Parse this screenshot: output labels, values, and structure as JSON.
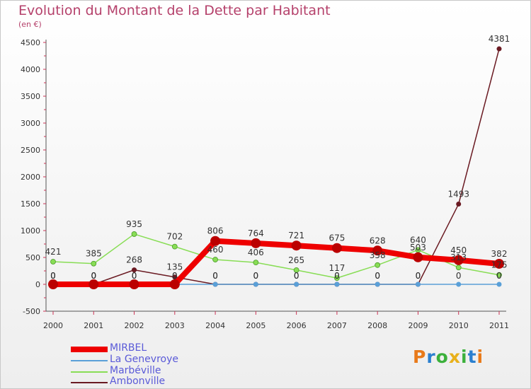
{
  "chart_data": {
    "type": "line",
    "title": "Evolution du Montant de la Dette par Habitant",
    "subtitle": "(en €)",
    "xlabel": "",
    "ylabel": "",
    "categories": [
      "2000",
      "2001",
      "2002",
      "2003",
      "2004",
      "2005",
      "2006",
      "2007",
      "2008",
      "2009",
      "2010",
      "2011"
    ],
    "ylim": [
      -500,
      4500
    ],
    "yticks": [
      -500,
      0,
      500,
      1000,
      1500,
      2000,
      2500,
      3000,
      3500,
      4000,
      4500
    ],
    "grid": false,
    "legend_position": "bottom-left",
    "series": [
      {
        "name": "MIRBEL",
        "color": "#ee0000",
        "values": [
          0,
          0,
          0,
          0,
          806,
          764,
          721,
          675,
          628,
          503,
          450,
          382
        ],
        "labels": [
          "0",
          "0",
          "0",
          "0",
          "806",
          "764",
          "721",
          "675",
          "628",
          "503",
          "450",
          "382"
        ]
      },
      {
        "name": "La Genevroye",
        "color": "#5aa0d8",
        "values": [
          0,
          0,
          0,
          0,
          0,
          0,
          0,
          0,
          0,
          0,
          0,
          0
        ],
        "labels": [
          "0",
          "0",
          "0",
          "0",
          "0",
          "0",
          "0",
          "0",
          "0",
          "0",
          "0",
          "0"
        ]
      },
      {
        "name": "Marbéville",
        "color": "#88dd55",
        "values": [
          421,
          385,
          935,
          702,
          460,
          406,
          265,
          117,
          358,
          640,
          313,
          175
        ],
        "labels": [
          "421",
          "385",
          "935",
          "702",
          "460",
          "406",
          "265",
          "117",
          "358",
          "640",
          "313",
          "175"
        ]
      },
      {
        "name": "Ambonville",
        "color": "#6a1a22",
        "values": [
          0,
          0,
          268,
          135,
          0,
          0,
          0,
          0,
          0,
          0,
          1493,
          4381
        ],
        "labels": [
          "0",
          "0",
          "268",
          "135",
          "0",
          "0",
          "0",
          "0",
          "0",
          "0",
          "1493",
          "4381"
        ]
      }
    ]
  },
  "logo": {
    "letters": [
      "P",
      "r",
      "o",
      "x",
      "i",
      "t",
      "i"
    ],
    "colors": [
      "#e87a1a",
      "#2a7fcf",
      "#3bb03b",
      "#e8b01a",
      "#3bb03b",
      "#2a7fcf",
      "#e87a1a"
    ]
  }
}
